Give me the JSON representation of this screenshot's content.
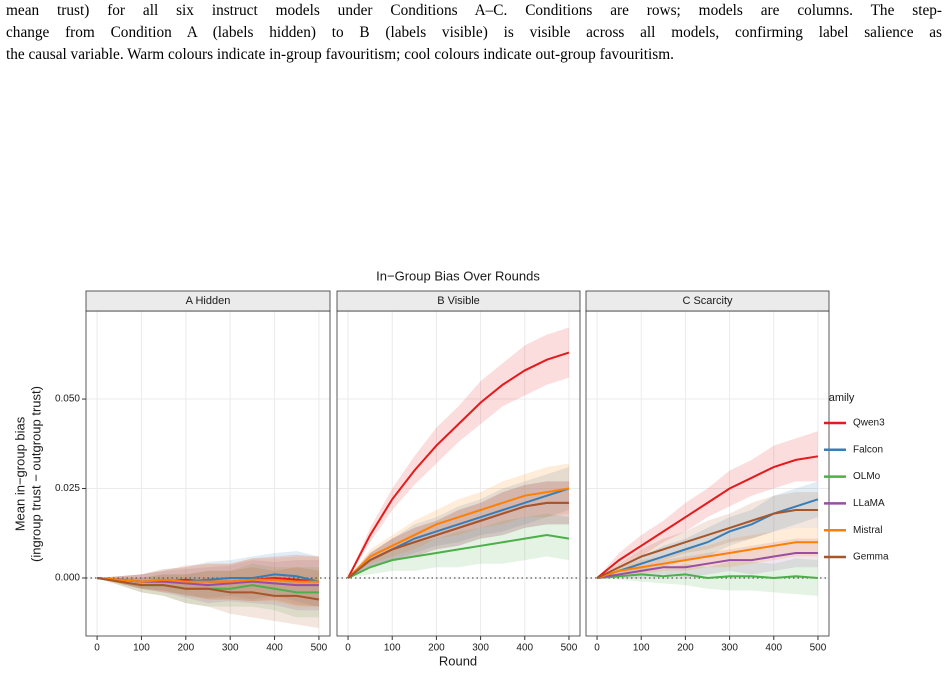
{
  "paper": {
    "caption_lines": [
      "mean trust) for all six instruct models under Conditions A–C. Conditions are rows; models are columns. The step-",
      "change from Condition A (labels hidden) to B (labels visible) is visible across all models, confirming label salience as",
      "the causal variable. Warm colours indicate in-group favouritism; cool colours indicate out-group favouritism."
    ]
  },
  "chart_data": {
    "type": "line",
    "title": "In−Group Bias Over Rounds",
    "xlabel": "Round",
    "ylabel": [
      "Mean in−group bias",
      "(ingroup trust − outgroup trust)"
    ],
    "legend_title": "Family",
    "x": [
      0,
      50,
      100,
      150,
      200,
      250,
      300,
      350,
      400,
      450,
      500
    ],
    "xlim": [
      -25,
      525
    ],
    "xticks": [
      0,
      100,
      200,
      300,
      400,
      500
    ],
    "ylim": [
      -0.0162,
      0.0746
    ],
    "yticks": [
      {
        "value": 0,
        "label": "0.000"
      },
      {
        "value": 0.025,
        "label": "0.025"
      },
      {
        "value": 0.05,
        "label": "0.050"
      }
    ],
    "hline": 0,
    "grid": true,
    "series": [
      {
        "name": "Qwen3",
        "color": "#e41a1c"
      },
      {
        "name": "Falcon",
        "color": "#377eb8"
      },
      {
        "name": "OLMo",
        "color": "#4daf4a"
      },
      {
        "name": "LLaMA",
        "color": "#984ea3"
      },
      {
        "name": "Mistral",
        "color": "#ff7f00"
      },
      {
        "name": "Gemma",
        "color": "#a65628"
      }
    ],
    "panels": [
      {
        "title": "A Hidden",
        "values": [
          [
            0,
            -0.0005,
            -0.001,
            -0.001,
            -0.0005,
            -0.001,
            -0.001,
            -0.0005,
            0,
            -0.0005,
            -0.001
          ],
          [
            0,
            -0.0005,
            -0.001,
            -0.0005,
            -0.001,
            -0.0005,
            0,
            0,
            0.001,
            0.0005,
            -0.001
          ],
          [
            0,
            -0.001,
            -0.002,
            -0.002,
            -0.003,
            -0.003,
            -0.003,
            -0.002,
            -0.003,
            -0.004,
            -0.004
          ],
          [
            0,
            -0.0005,
            -0.001,
            -0.001,
            -0.0015,
            -0.002,
            -0.0015,
            -0.001,
            -0.0015,
            -0.002,
            -0.002
          ],
          [
            0,
            -0.0005,
            -0.001,
            -0.0005,
            -0.001,
            -0.001,
            -0.001,
            -0.0005,
            -0.0005,
            -0.001,
            -0.001
          ],
          [
            0,
            -0.001,
            -0.002,
            -0.002,
            -0.003,
            -0.003,
            -0.004,
            -0.004,
            -0.005,
            -0.005,
            -0.006
          ]
        ],
        "ci": [
          [
            0,
            0.001,
            0.002,
            0.003,
            0.004,
            0.005,
            0.005,
            0.006,
            0.006,
            0.007,
            0.007
          ],
          [
            0,
            0.001,
            0.002,
            0.003,
            0.004,
            0.005,
            0.005,
            0.006,
            0.006,
            0.007,
            0.007
          ],
          [
            0,
            0.001,
            0.002,
            0.003,
            0.004,
            0.005,
            0.005,
            0.006,
            0.006,
            0.007,
            0.007
          ],
          [
            0,
            0.001,
            0.002,
            0.003,
            0.004,
            0.005,
            0.005,
            0.006,
            0.006,
            0.007,
            0.007
          ],
          [
            0,
            0.001,
            0.002,
            0.003,
            0.004,
            0.005,
            0.005,
            0.006,
            0.006,
            0.007,
            0.007
          ],
          [
            0,
            0.001,
            0.002,
            0.003,
            0.004,
            0.005,
            0.006,
            0.007,
            0.007,
            0.008,
            0.008
          ]
        ]
      },
      {
        "title": "B Visible",
        "values": [
          [
            0,
            0.012,
            0.022,
            0.03,
            0.037,
            0.043,
            0.049,
            0.054,
            0.058,
            0.061,
            0.063
          ],
          [
            0,
            0.005,
            0.008,
            0.011,
            0.013,
            0.015,
            0.017,
            0.019,
            0.021,
            0.023,
            0.025
          ],
          [
            0,
            0.003,
            0.005,
            0.006,
            0.007,
            0.008,
            0.009,
            0.01,
            0.011,
            0.012,
            0.011
          ],
          [
            0,
            0.005,
            0.008,
            0.01,
            0.012,
            0.014,
            0.016,
            0.018,
            0.02,
            0.021,
            0.021
          ],
          [
            0,
            0.006,
            0.009,
            0.012,
            0.015,
            0.017,
            0.019,
            0.021,
            0.023,
            0.024,
            0.025
          ],
          [
            0,
            0.005,
            0.008,
            0.01,
            0.012,
            0.014,
            0.016,
            0.018,
            0.02,
            0.021,
            0.021
          ]
        ],
        "ci": [
          [
            0,
            0.002,
            0.003,
            0.004,
            0.005,
            0.005,
            0.006,
            0.006,
            0.007,
            0.007,
            0.007
          ],
          [
            0,
            0.002,
            0.003,
            0.004,
            0.004,
            0.005,
            0.005,
            0.006,
            0.006,
            0.006,
            0.006
          ],
          [
            0,
            0.002,
            0.003,
            0.004,
            0.004,
            0.005,
            0.005,
            0.006,
            0.006,
            0.006,
            0.006
          ],
          [
            0,
            0.002,
            0.003,
            0.004,
            0.004,
            0.005,
            0.005,
            0.006,
            0.006,
            0.006,
            0.006
          ],
          [
            0,
            0.002,
            0.003,
            0.004,
            0.004,
            0.005,
            0.005,
            0.006,
            0.006,
            0.007,
            0.007
          ],
          [
            0,
            0.002,
            0.003,
            0.004,
            0.004,
            0.005,
            0.005,
            0.006,
            0.006,
            0.006,
            0.006
          ]
        ]
      },
      {
        "title": "C Scarcity",
        "values": [
          [
            0,
            0.005,
            0.009,
            0.013,
            0.017,
            0.021,
            0.025,
            0.028,
            0.031,
            0.033,
            0.034
          ],
          [
            0,
            0.002,
            0.004,
            0.006,
            0.008,
            0.01,
            0.013,
            0.015,
            0.018,
            0.02,
            0.022
          ],
          [
            0,
            0.0005,
            0.001,
            0.0005,
            0.001,
            0,
            0.0005,
            0.0005,
            0,
            0.0005,
            0
          ],
          [
            0,
            0.001,
            0.002,
            0.003,
            0.003,
            0.004,
            0.005,
            0.005,
            0.006,
            0.007,
            0.007
          ],
          [
            0,
            0.002,
            0.003,
            0.004,
            0.005,
            0.006,
            0.007,
            0.008,
            0.009,
            0.01,
            0.01
          ],
          [
            0,
            0.003,
            0.006,
            0.008,
            0.01,
            0.012,
            0.014,
            0.016,
            0.018,
            0.019,
            0.019
          ]
        ],
        "ci": [
          [
            0,
            0.002,
            0.003,
            0.003,
            0.004,
            0.004,
            0.005,
            0.005,
            0.006,
            0.006,
            0.007
          ],
          [
            0,
            0.001,
            0.002,
            0.003,
            0.003,
            0.004,
            0.004,
            0.004,
            0.005,
            0.005,
            0.005
          ],
          [
            0,
            0.001,
            0.002,
            0.002,
            0.003,
            0.003,
            0.004,
            0.004,
            0.004,
            0.005,
            0.005
          ],
          [
            0,
            0.001,
            0.002,
            0.002,
            0.003,
            0.003,
            0.003,
            0.004,
            0.004,
            0.004,
            0.004
          ],
          [
            0,
            0.001,
            0.002,
            0.002,
            0.003,
            0.003,
            0.004,
            0.004,
            0.004,
            0.004,
            0.004
          ],
          [
            0,
            0.001,
            0.002,
            0.003,
            0.003,
            0.004,
            0.004,
            0.005,
            0.005,
            0.005,
            0.005
          ]
        ]
      }
    ]
  }
}
